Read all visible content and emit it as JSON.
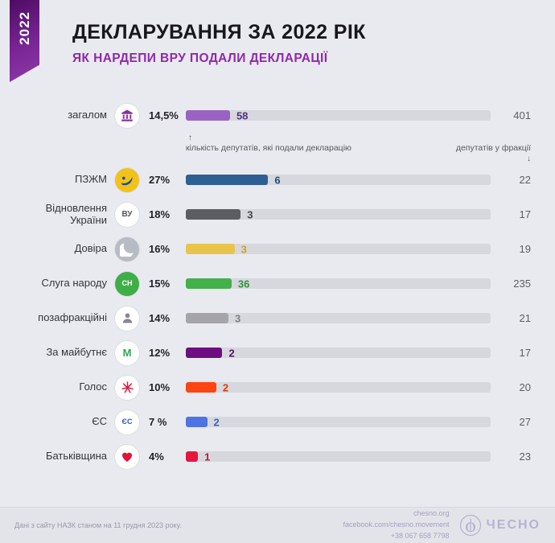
{
  "ribbon": {
    "year": "2022"
  },
  "header": {
    "title": "ДЕКЛАРУВАННЯ ЗА 2022 РІК",
    "subtitle": "ЯК НАРДЕПИ ВРУ ПОДАЛИ ДЕКЛАРАЦІЇ"
  },
  "chart_data": {
    "type": "bar",
    "orientation": "horizontal",
    "title": "ДЕКЛАРУВАННЯ ЗА 2022 РІК",
    "subtitle": "ЯК НАРДЕПИ ВРУ ПОДАЛИ ДЕКЛАРАЦІЇ",
    "bar_scale": "percent of fraction that filed, 0-100",
    "annotation_filed": "кількість депутатів, які подали декларацію",
    "annotation_fraction": "депутатів у фракції",
    "track_color": "#d7d8de",
    "rows": [
      {
        "id": "zagalom",
        "label": "загалом",
        "percent_display": "14,5%",
        "percent": 14.5,
        "filed": 58,
        "fraction_total": 401,
        "bar_color": "#9b63c1",
        "value_color": "#50307f",
        "icon": "parliament"
      },
      {
        "id": "pzjm",
        "label": "ПЗЖМ",
        "percent_display": "27%",
        "percent": 27,
        "filed": 6,
        "fraction_total": 22,
        "bar_color": "#2e5f92",
        "value_color": "#1f4d7e",
        "icon": "pzjm"
      },
      {
        "id": "vidnovlennia",
        "label": "Відновлення України",
        "percent_display": "18%",
        "percent": 18,
        "filed": 3,
        "fraction_total": 17,
        "bar_color": "#5c5c62",
        "value_color": "#45454b",
        "icon": "vu"
      },
      {
        "id": "dovira",
        "label": "Довіра",
        "percent_display": "16%",
        "percent": 16,
        "filed": 3,
        "fraction_total": 19,
        "bar_color": "#e9c44c",
        "value_color": "#d2a117",
        "icon": "dovira"
      },
      {
        "id": "sluga",
        "label": "Слуга народу",
        "percent_display": "15%",
        "percent": 15,
        "filed": 36,
        "fraction_total": 235,
        "bar_color": "#44b04b",
        "value_color": "#2f9238",
        "icon": "sluga"
      },
      {
        "id": "pozafraktsiini",
        "label": "позафракційні",
        "percent_display": "14%",
        "percent": 14,
        "filed": 3,
        "fraction_total": 21,
        "bar_color": "#a4a4aa",
        "value_color": "#7f7f86",
        "icon": "nonfaction"
      },
      {
        "id": "maybutnie",
        "label": "За майбутнє",
        "percent_display": "12%",
        "percent": 12,
        "filed": 2,
        "fraction_total": 17,
        "bar_color": "#6d0e80",
        "value_color": "#5a0c6a",
        "icon": "maybutnie"
      },
      {
        "id": "holos",
        "label": "Голос",
        "percent_display": "10%",
        "percent": 10,
        "filed": 2,
        "fraction_total": 20,
        "bar_color": "#fc4512",
        "value_color": "#e2390a",
        "icon": "holos"
      },
      {
        "id": "es",
        "label": "ЄС",
        "percent_display": "7 %",
        "percent": 7,
        "filed": 2,
        "fraction_total": 27,
        "bar_color": "#4f73e2",
        "value_color": "#3a5ecf",
        "icon": "es"
      },
      {
        "id": "batkivshchyna",
        "label": "Батьківщина",
        "percent_display": "4%",
        "percent": 4,
        "filed": 1,
        "fraction_total": 23,
        "bar_color": "#e51740",
        "value_color": "#cc0f33",
        "icon": "batkivshchyna"
      }
    ]
  },
  "footer": {
    "source_note": "Дані з сайту НАЗК станом на 11 грудня 2023 року.",
    "website": "chesno.org",
    "facebook": "facebook.com/chesno.movement",
    "phone": "+38 067 658 7798",
    "logo_text": "ЧЕСНО"
  }
}
